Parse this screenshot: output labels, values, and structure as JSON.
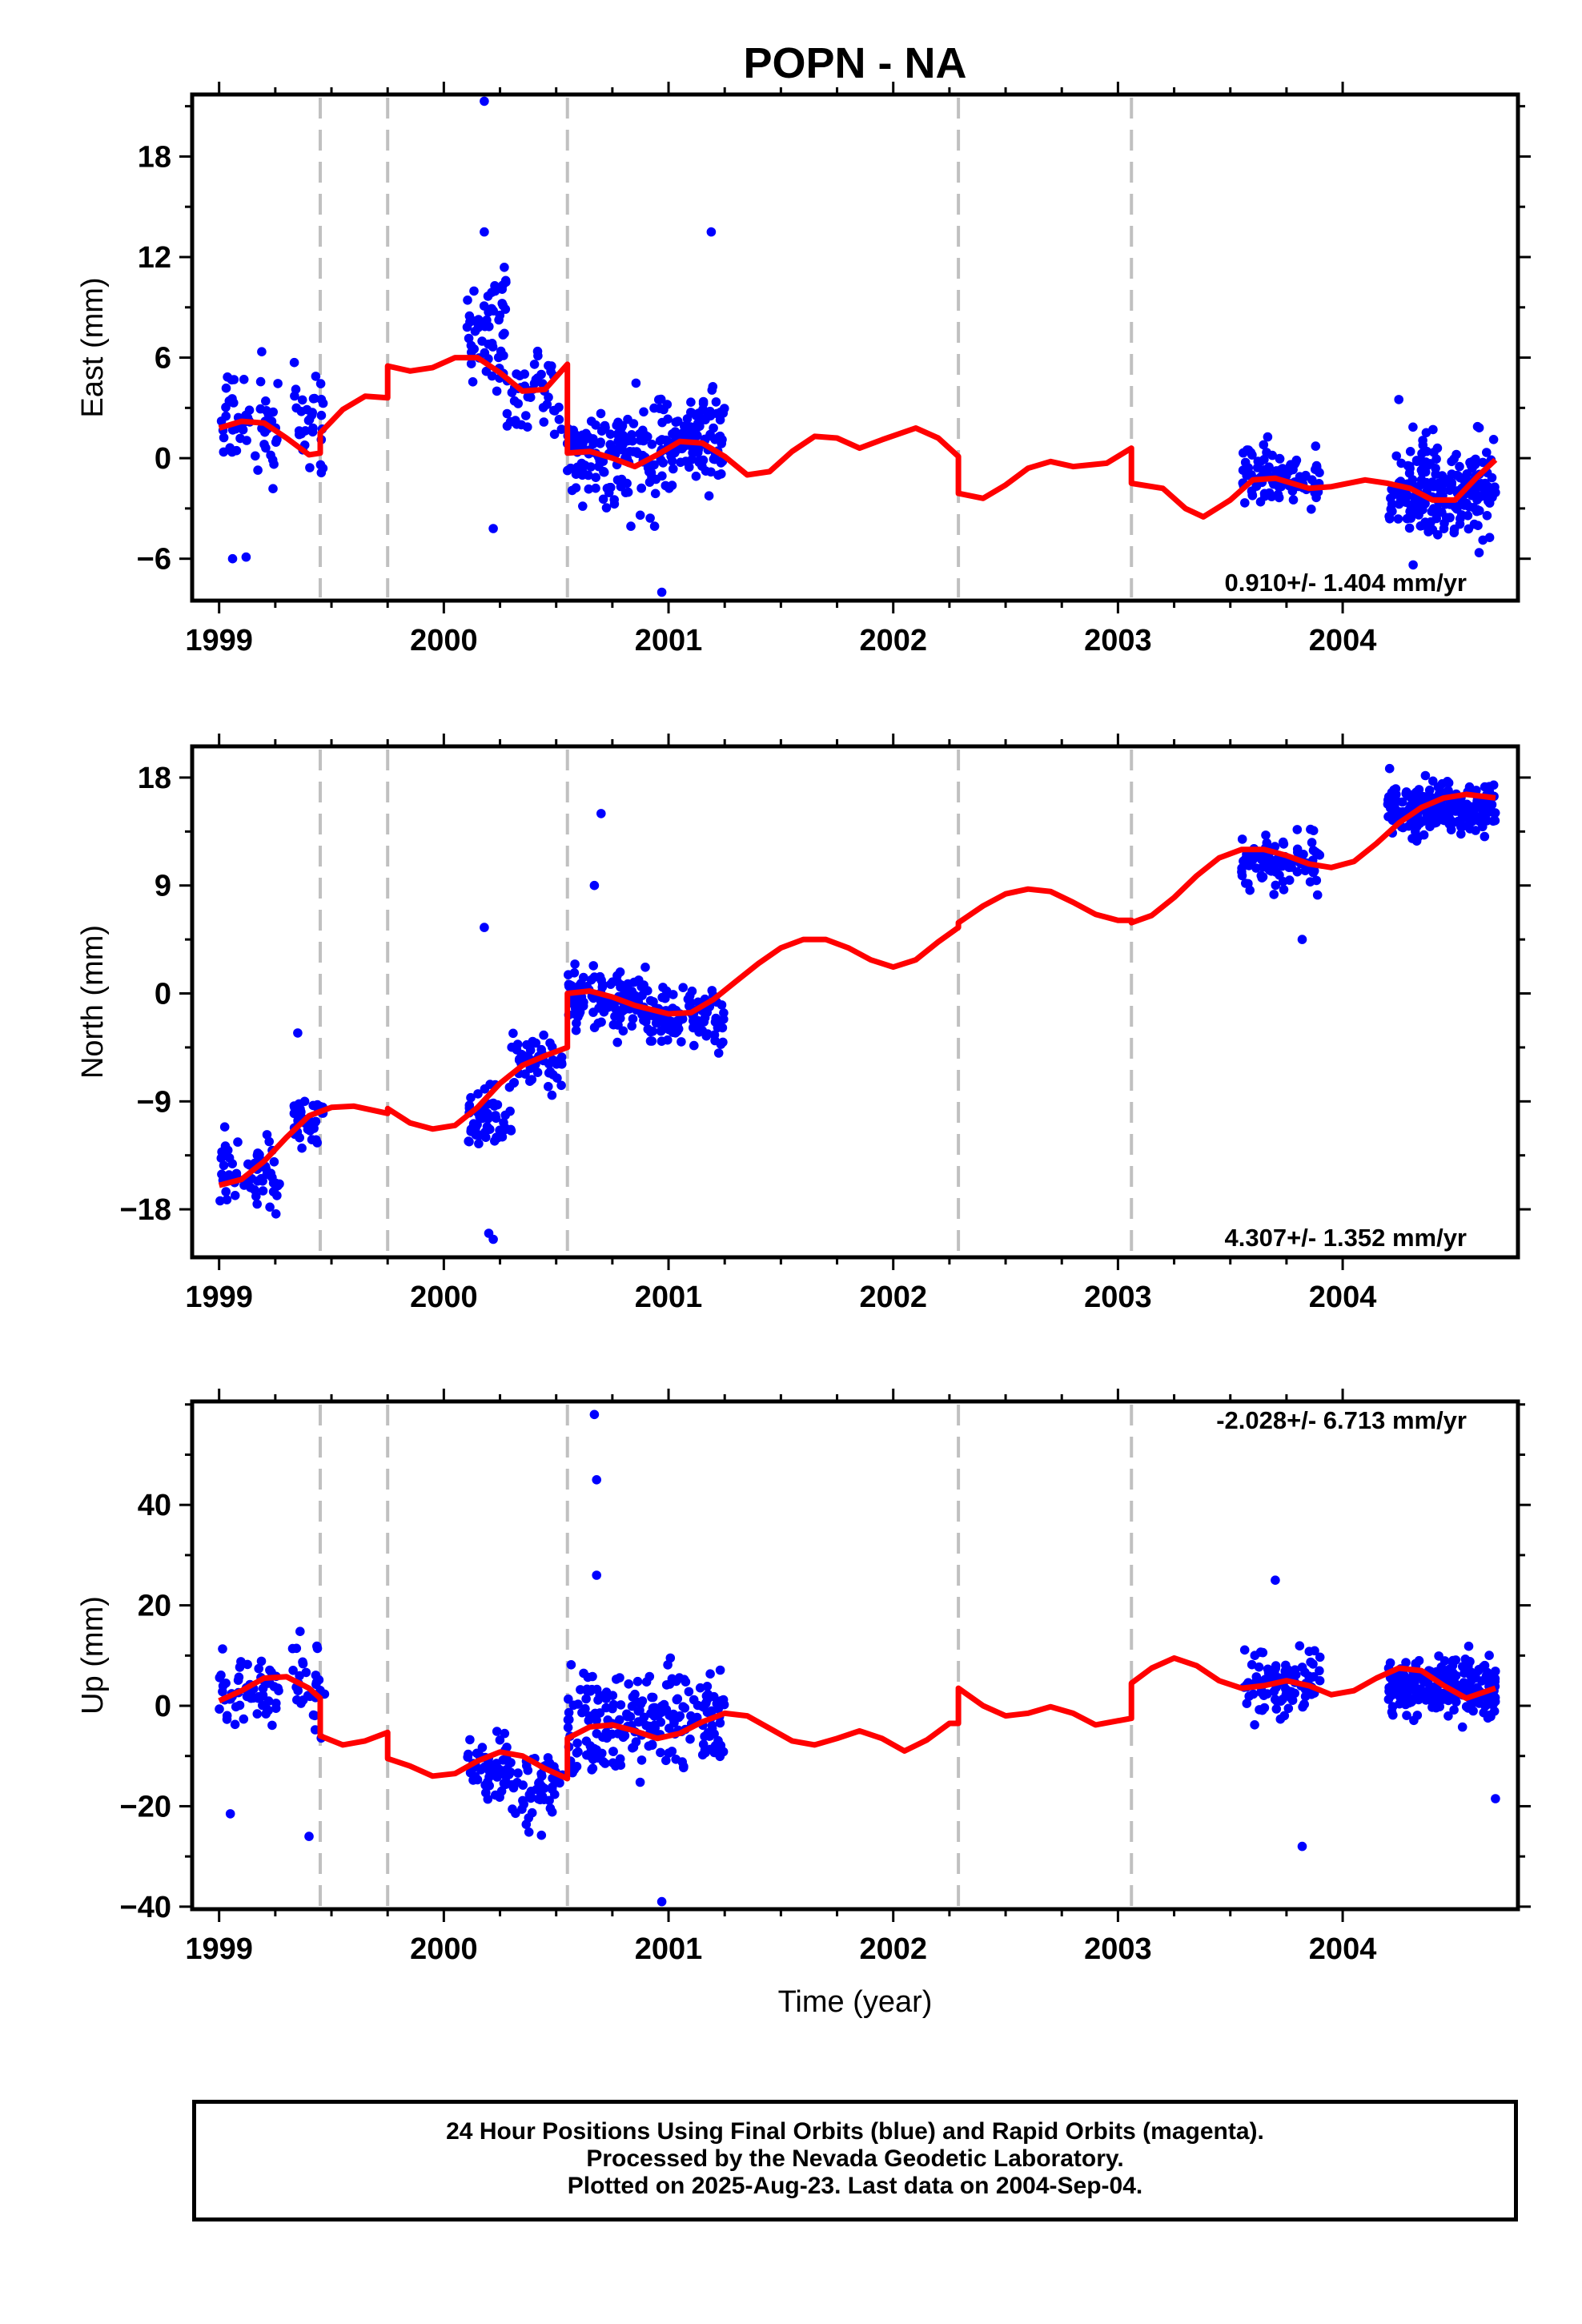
{
  "title": "POPN - NA",
  "xlabel": "Time (year)",
  "footer": [
    "24 Hour Positions Using Final Orbits (blue) and Rapid Orbits (magenta).",
    "Processed by the Nevada Geodetic Laboratory.",
    "Plotted on 2025-Aug-23. Last data on 2004-Sep-04."
  ],
  "colors": {
    "final_orbits": "#0000ff",
    "model": "#ff0000",
    "steps": "#c0c0c0"
  },
  "chart_data": [
    {
      "type": "scatter",
      "ylabel": "East (mm)",
      "rate_label": "0.910+/- 1.404 mm/yr",
      "xlim": [
        1998.88,
        2004.78
      ],
      "ylim": [
        -8.5,
        21.7
      ],
      "yticks": [
        -6,
        0,
        6,
        12,
        18
      ],
      "xticks": [
        1999,
        2000,
        2001,
        2002,
        2003,
        2004
      ],
      "steps": [
        1999.45,
        1999.75,
        2000.55,
        2002.29,
        2003.06
      ],
      "clusters": [
        {
          "x": [
            1999.0,
            1999.27
          ],
          "mean": 1.8,
          "sd": 2.5,
          "n": 55
        },
        {
          "x": [
            1999.32,
            1999.47
          ],
          "mean": 2.2,
          "sd": 2.7,
          "n": 32
        },
        {
          "x": [
            2000.1,
            2000.28
          ],
          "mean": 7.8,
          "sd": 2.6,
          "n": 55
        },
        {
          "x": [
            2000.28,
            2000.53
          ],
          "mean": 3.6,
          "sd": 2.2,
          "n": 45
        },
        {
          "x": [
            2000.55,
            2000.95
          ],
          "mean": 0.0,
          "sd": 2.6,
          "n": 140
        },
        {
          "x": [
            2000.95,
            2001.25
          ],
          "mean": 1.2,
          "sd": 2.2,
          "n": 120
        },
        {
          "x": [
            2003.55,
            2003.9
          ],
          "mean": -1.1,
          "sd": 1.6,
          "n": 100
        },
        {
          "x": [
            2004.2,
            2004.68
          ],
          "mean": -1.8,
          "sd": 2.1,
          "n": 230
        }
      ],
      "outliers": [
        [
          2000.18,
          21.3
        ],
        [
          2000.18,
          13.5
        ],
        [
          2001.19,
          13.5
        ],
        [
          2000.22,
          -4.2
        ],
        [
          1999.06,
          -6.0
        ],
        [
          1999.12,
          -5.9
        ],
        [
          2000.97,
          -8.0
        ],
        [
          2004.25,
          3.5
        ]
      ],
      "model": [
        [
          1999.0,
          1.8
        ],
        [
          1999.1,
          2.2
        ],
        [
          1999.2,
          2.1
        ],
        [
          1999.3,
          1.2
        ],
        [
          1999.4,
          0.2
        ],
        [
          1999.45,
          0.3
        ],
        [
          1999.45,
          1.5
        ],
        [
          1999.55,
          2.9
        ],
        [
          1999.65,
          3.7
        ],
        [
          1999.75,
          3.6
        ],
        [
          1999.75,
          5.5
        ],
        [
          1999.85,
          5.2
        ],
        [
          1999.95,
          5.4
        ],
        [
          2000.05,
          6.0
        ],
        [
          2000.15,
          6.0
        ],
        [
          2000.25,
          5.1
        ],
        [
          2000.35,
          4.0
        ],
        [
          2000.45,
          4.1
        ],
        [
          2000.55,
          5.6
        ],
        [
          2000.55,
          0.3
        ],
        [
          2000.65,
          0.4
        ],
        [
          2000.75,
          0.0
        ],
        [
          2000.85,
          -0.5
        ],
        [
          2000.95,
          0.2
        ],
        [
          2001.05,
          1.0
        ],
        [
          2001.15,
          0.9
        ],
        [
          2001.25,
          0.1
        ],
        [
          2001.35,
          -1.0
        ],
        [
          2001.45,
          -0.8
        ],
        [
          2001.55,
          0.4
        ],
        [
          2001.65,
          1.3
        ],
        [
          2001.75,
          1.2
        ],
        [
          2001.85,
          0.6
        ],
        [
          2001.95,
          1.1
        ],
        [
          2002.1,
          1.8
        ],
        [
          2002.2,
          1.2
        ],
        [
          2002.29,
          0.1
        ],
        [
          2002.29,
          -2.1
        ],
        [
          2002.4,
          -2.4
        ],
        [
          2002.5,
          -1.6
        ],
        [
          2002.6,
          -0.6
        ],
        [
          2002.7,
          -0.2
        ],
        [
          2002.8,
          -0.5
        ],
        [
          2002.95,
          -0.3
        ],
        [
          2003.06,
          0.6
        ],
        [
          2003.06,
          -1.5
        ],
        [
          2003.2,
          -1.8
        ],
        [
          2003.3,
          -3.0
        ],
        [
          2003.38,
          -3.5
        ],
        [
          2003.5,
          -2.5
        ],
        [
          2003.6,
          -1.3
        ],
        [
          2003.7,
          -1.2
        ],
        [
          2003.85,
          -1.8
        ],
        [
          2003.95,
          -1.7
        ],
        [
          2004.1,
          -1.3
        ],
        [
          2004.2,
          -1.5
        ],
        [
          2004.3,
          -1.8
        ],
        [
          2004.4,
          -2.5
        ],
        [
          2004.5,
          -2.5
        ],
        [
          2004.6,
          -1.1
        ],
        [
          2004.68,
          -0.1
        ]
      ]
    },
    {
      "type": "scatter",
      "ylabel": "North (mm)",
      "rate_label": "4.307+/- 1.352 mm/yr",
      "xlim": [
        1998.88,
        2004.78
      ],
      "ylim": [
        -22.0,
        20.6
      ],
      "yticks": [
        -18,
        -9,
        0,
        9,
        18
      ],
      "xticks": [
        1999,
        2000,
        2001,
        2002,
        2003,
        2004
      ],
      "steps": [
        1999.45,
        1999.75,
        2000.55,
        2002.29,
        2003.06
      ],
      "clusters": [
        {
          "x": [
            1999.0,
            1999.27
          ],
          "mean": -15.0,
          "sd": 2.3,
          "n": 70
        },
        {
          "x": [
            1999.32,
            1999.47
          ],
          "mean": -10.5,
          "sd": 1.8,
          "n": 38
        },
        {
          "x": [
            2000.1,
            2000.3
          ],
          "mean": -10.5,
          "sd": 2.6,
          "n": 55
        },
        {
          "x": [
            2000.3,
            2000.53
          ],
          "mean": -5.5,
          "sd": 2.0,
          "n": 50
        },
        {
          "x": [
            2000.55,
            2000.9
          ],
          "mean": -0.5,
          "sd": 2.4,
          "n": 120
        },
        {
          "x": [
            2000.9,
            2001.25
          ],
          "mean": -1.8,
          "sd": 2.0,
          "n": 110
        },
        {
          "x": [
            2003.55,
            2003.9
          ],
          "mean": 11.0,
          "sd": 1.9,
          "n": 100
        },
        {
          "x": [
            2004.2,
            2004.68
          ],
          "mean": 15.5,
          "sd": 1.8,
          "n": 230
        }
      ],
      "outliers": [
        [
          2000.18,
          5.5
        ],
        [
          2000.2,
          -20.0
        ],
        [
          2000.22,
          -20.5
        ],
        [
          2000.7,
          15.0
        ],
        [
          1999.35,
          -3.3
        ],
        [
          2003.82,
          4.5
        ],
        [
          2000.67,
          9.0
        ]
      ],
      "model": [
        [
          1999.0,
          -16.0
        ],
        [
          1999.1,
          -15.5
        ],
        [
          1999.2,
          -14.0
        ],
        [
          1999.3,
          -12.0
        ],
        [
          1999.4,
          -10.2
        ],
        [
          1999.5,
          -9.5
        ],
        [
          1999.6,
          -9.4
        ],
        [
          1999.7,
          -9.8
        ],
        [
          1999.75,
          -10.0
        ],
        [
          1999.75,
          -9.6
        ],
        [
          1999.85,
          -10.8
        ],
        [
          1999.95,
          -11.3
        ],
        [
          2000.05,
          -11.0
        ],
        [
          2000.15,
          -9.5
        ],
        [
          2000.25,
          -7.5
        ],
        [
          2000.35,
          -6.0
        ],
        [
          2000.45,
          -5.2
        ],
        [
          2000.55,
          -4.5
        ],
        [
          2000.55,
          0.0
        ],
        [
          2000.65,
          0.2
        ],
        [
          2000.75,
          -0.3
        ],
        [
          2000.85,
          -1.0
        ],
        [
          2001.0,
          -1.7
        ],
        [
          2001.1,
          -1.6
        ],
        [
          2001.2,
          -0.5
        ],
        [
          2001.3,
          1.0
        ],
        [
          2001.4,
          2.5
        ],
        [
          2001.5,
          3.8
        ],
        [
          2001.6,
          4.5
        ],
        [
          2001.7,
          4.5
        ],
        [
          2001.8,
          3.8
        ],
        [
          2001.9,
          2.8
        ],
        [
          2002.0,
          2.2
        ],
        [
          2002.1,
          2.8
        ],
        [
          2002.2,
          4.3
        ],
        [
          2002.29,
          5.5
        ],
        [
          2002.29,
          5.9
        ],
        [
          2002.4,
          7.3
        ],
        [
          2002.5,
          8.3
        ],
        [
          2002.6,
          8.7
        ],
        [
          2002.7,
          8.5
        ],
        [
          2002.8,
          7.6
        ],
        [
          2002.9,
          6.6
        ],
        [
          2003.0,
          6.1
        ],
        [
          2003.06,
          6.1
        ],
        [
          2003.06,
          5.9
        ],
        [
          2003.15,
          6.5
        ],
        [
          2003.25,
          8.0
        ],
        [
          2003.35,
          9.8
        ],
        [
          2003.45,
          11.3
        ],
        [
          2003.55,
          12.0
        ],
        [
          2003.65,
          12.0
        ],
        [
          2003.75,
          11.5
        ],
        [
          2003.85,
          10.8
        ],
        [
          2003.95,
          10.5
        ],
        [
          2004.05,
          11.0
        ],
        [
          2004.15,
          12.5
        ],
        [
          2004.25,
          14.2
        ],
        [
          2004.35,
          15.5
        ],
        [
          2004.45,
          16.3
        ],
        [
          2004.55,
          16.6
        ],
        [
          2004.68,
          16.3
        ]
      ]
    },
    {
      "type": "scatter",
      "ylabel": "Up (mm)",
      "rate_label": "-2.028+/- 6.713 mm/yr",
      "xlim": [
        1998.88,
        2004.78
      ],
      "ylim": [
        -40.5,
        60.6
      ],
      "yticks": [
        -40,
        -20,
        0,
        20,
        40
      ],
      "xticks": [
        1999,
        2000,
        2001,
        2002,
        2003,
        2004
      ],
      "steps": [
        1999.45,
        1999.75,
        2000.55,
        2002.29,
        2003.06
      ],
      "clusters": [
        {
          "x": [
            1999.0,
            1999.27
          ],
          "mean": 3.0,
          "sd": 6.0,
          "n": 60
        },
        {
          "x": [
            1999.32,
            1999.47
          ],
          "mean": 5.0,
          "sd": 8.0,
          "n": 30
        },
        {
          "x": [
            2000.1,
            2000.3
          ],
          "mean": -12.0,
          "sd": 6.0,
          "n": 55
        },
        {
          "x": [
            2000.3,
            2000.53
          ],
          "mean": -17.0,
          "sd": 5.0,
          "n": 55
        },
        {
          "x": [
            2000.55,
            2000.9
          ],
          "mean": -4.0,
          "sd": 9.0,
          "n": 110
        },
        {
          "x": [
            2000.9,
            2001.25
          ],
          "mean": -3.0,
          "sd": 8.5,
          "n": 110
        },
        {
          "x": [
            2003.55,
            2003.9
          ],
          "mean": 4.0,
          "sd": 6.0,
          "n": 100
        },
        {
          "x": [
            2004.2,
            2004.68
          ],
          "mean": 3.5,
          "sd": 5.0,
          "n": 230
        }
      ],
      "outliers": [
        [
          2000.67,
          58.0
        ],
        [
          2000.68,
          45.0
        ],
        [
          2000.68,
          26.0
        ],
        [
          2003.82,
          -28.0
        ],
        [
          2004.68,
          -18.5
        ],
        [
          1999.4,
          -26.0
        ],
        [
          1999.05,
          -21.5
        ],
        [
          2000.97,
          -39.0
        ],
        [
          2003.7,
          25.0
        ]
      ],
      "model": [
        [
          1999.0,
          1.0
        ],
        [
          1999.1,
          3.0
        ],
        [
          1999.2,
          5.5
        ],
        [
          1999.3,
          5.8
        ],
        [
          1999.4,
          3.5
        ],
        [
          1999.45,
          1.5
        ],
        [
          1999.45,
          -6.0
        ],
        [
          1999.55,
          -7.8
        ],
        [
          1999.65,
          -7.0
        ],
        [
          1999.75,
          -5.3
        ],
        [
          1999.75,
          -10.5
        ],
        [
          1999.85,
          -12.0
        ],
        [
          1999.95,
          -14.0
        ],
        [
          2000.05,
          -13.5
        ],
        [
          2000.15,
          -11.0
        ],
        [
          2000.25,
          -9.2
        ],
        [
          2000.35,
          -10.0
        ],
        [
          2000.45,
          -12.5
        ],
        [
          2000.55,
          -14.5
        ],
        [
          2000.55,
          -6.5
        ],
        [
          2000.65,
          -4.2
        ],
        [
          2000.75,
          -3.8
        ],
        [
          2000.85,
          -5.0
        ],
        [
          2000.95,
          -6.5
        ],
        [
          2001.05,
          -5.5
        ],
        [
          2001.15,
          -3.2
        ],
        [
          2001.25,
          -1.5
        ],
        [
          2001.35,
          -2.0
        ],
        [
          2001.45,
          -4.5
        ],
        [
          2001.55,
          -7.0
        ],
        [
          2001.65,
          -7.8
        ],
        [
          2001.75,
          -6.5
        ],
        [
          2001.85,
          -5.0
        ],
        [
          2001.95,
          -6.5
        ],
        [
          2002.05,
          -9.0
        ],
        [
          2002.15,
          -6.8
        ],
        [
          2002.25,
          -3.5
        ],
        [
          2002.29,
          -3.5
        ],
        [
          2002.29,
          3.5
        ],
        [
          2002.4,
          0.0
        ],
        [
          2002.5,
          -2.0
        ],
        [
          2002.6,
          -1.5
        ],
        [
          2002.7,
          -0.2
        ],
        [
          2002.8,
          -1.5
        ],
        [
          2002.9,
          -3.8
        ],
        [
          2003.06,
          -2.5
        ],
        [
          2003.06,
          4.5
        ],
        [
          2003.15,
          7.5
        ],
        [
          2003.25,
          9.5
        ],
        [
          2003.35,
          8.0
        ],
        [
          2003.45,
          5.0
        ],
        [
          2003.55,
          3.5
        ],
        [
          2003.65,
          4.0
        ],
        [
          2003.75,
          5.0
        ],
        [
          2003.85,
          4.0
        ],
        [
          2003.95,
          2.2
        ],
        [
          2004.05,
          3.0
        ],
        [
          2004.15,
          5.5
        ],
        [
          2004.25,
          7.5
        ],
        [
          2004.35,
          7.0
        ],
        [
          2004.45,
          4.0
        ],
        [
          2004.55,
          1.5
        ],
        [
          2004.68,
          3.5
        ]
      ]
    }
  ]
}
